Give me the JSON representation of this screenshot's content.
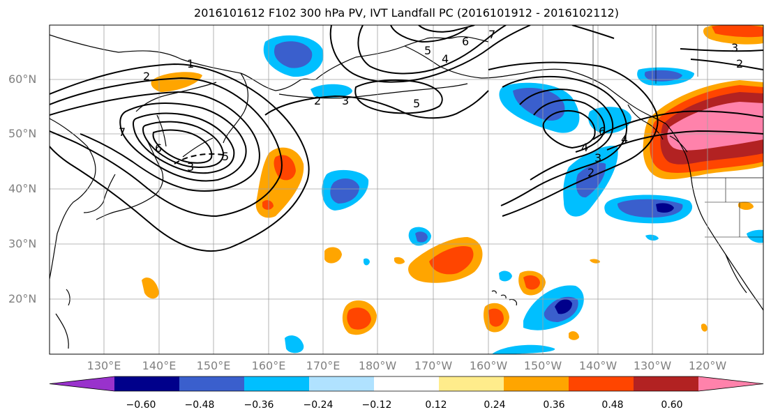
{
  "title": "2016101612 F102 300 hPa PV, IVT Landfall PC (2016101912 - 2016102112)",
  "lat_labels": [
    "60°N",
    "50°N",
    "40°N",
    "30°N",
    "20°N"
  ],
  "lon_labels": [
    "130°E",
    "140°E",
    "150°E",
    "160°E",
    "170°E",
    "180°W",
    "170°W",
    "160°W",
    "150°W",
    "140°W",
    "130°W",
    "120°W"
  ],
  "colorbar": {
    "tick_labels": [
      "−0.60",
      "−0.48",
      "−0.36",
      "−0.24",
      "−0.12",
      "0.12",
      "0.24",
      "0.36",
      "0.48",
      "0.60"
    ],
    "colors": [
      "#9932cc",
      "#00008b",
      "#3a5fcd",
      "#00bfff",
      "#b0e2ff",
      "#ffffff",
      "#ffec8b",
      "#ffa500",
      "#ff4500",
      "#b22222",
      "#ff82ab"
    ]
  },
  "contour_labels": [
    "1",
    "2",
    "2",
    "3",
    "3",
    "4",
    "4",
    "5",
    "5",
    "6",
    "6",
    "7",
    "2",
    "3",
    "4",
    "5",
    "6",
    "7",
    "2",
    "3"
  ],
  "map": {
    "land_color": "#ffffff",
    "coast_color": "#000000",
    "grid_color": "#a0a0a0"
  }
}
